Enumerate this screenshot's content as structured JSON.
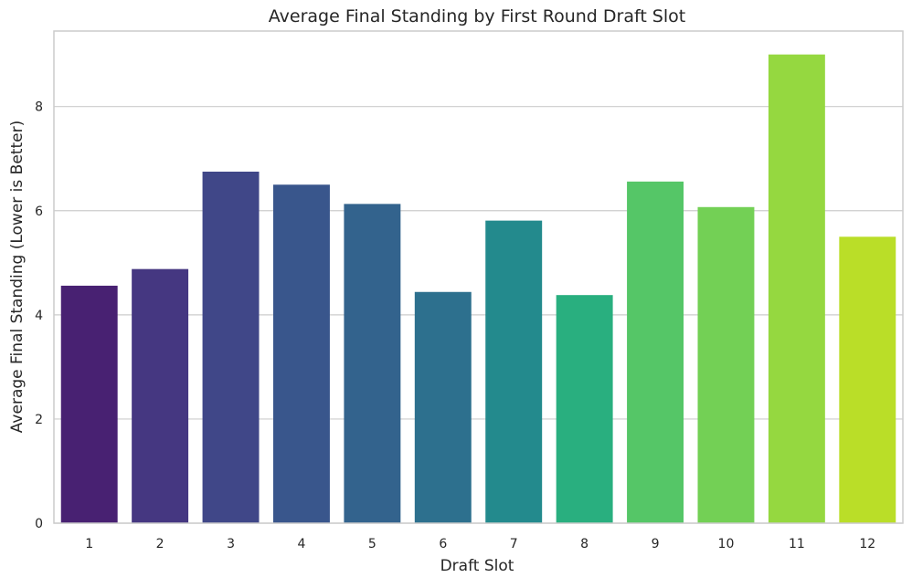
{
  "chart_data": {
    "type": "bar",
    "title": "Average Final Standing by First Round Draft Slot",
    "xlabel": "Draft Slot",
    "ylabel": "Average Final Standing (Lower is Better)",
    "categories": [
      "1",
      "2",
      "3",
      "4",
      "5",
      "6",
      "7",
      "8",
      "9",
      "10",
      "11",
      "12"
    ],
    "values": [
      4.56,
      4.88,
      6.75,
      6.5,
      6.13,
      4.44,
      5.81,
      4.38,
      6.56,
      6.07,
      9.0,
      5.5
    ],
    "colors": [
      "#482172",
      "#453781",
      "#404788",
      "#39568c",
      "#33638d",
      "#2d708e",
      "#238a8d",
      "#29af7f",
      "#55c667",
      "#73d055",
      "#95d840",
      "#bade28"
    ],
    "ylim": [
      0,
      9.45
    ],
    "yticks": [
      0,
      2,
      4,
      6,
      8
    ],
    "grid": "y"
  }
}
